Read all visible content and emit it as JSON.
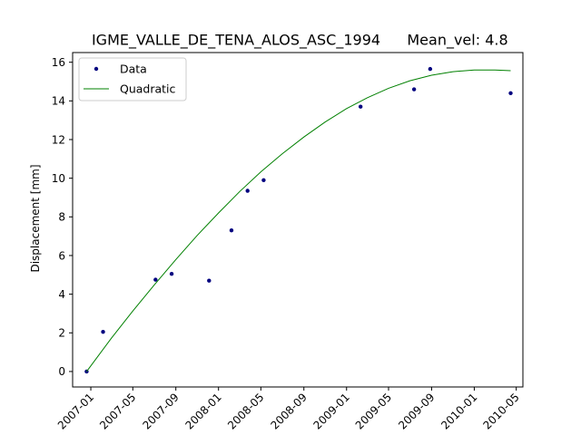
{
  "chart_data": {
    "type": "scatter",
    "title": "IGME_VALLE_DE_TENA_ALOS_ASC_1994",
    "subtitle": "Mean_vel: 4.8",
    "xlabel": "",
    "ylabel": "Displacement [mm]",
    "xlim": [
      "2006-11-10",
      "2010-05-20"
    ],
    "ylim": [
      -0.8,
      16.5
    ],
    "yticks": [
      0,
      2,
      4,
      6,
      8,
      10,
      12,
      14,
      16
    ],
    "xticks": [
      "2007-01",
      "2007-05",
      "2007-09",
      "2008-01",
      "2008-05",
      "2008-09",
      "2009-01",
      "2009-05",
      "2009-09",
      "2010-01",
      "2010-05"
    ],
    "grid": false,
    "legend": {
      "position": "top-left",
      "entries": [
        "Data",
        "Quadratic"
      ]
    },
    "series": [
      {
        "name": "Data",
        "kind": "points",
        "color": "#00007f",
        "x": [
          "2006-12-20",
          "2007-02-05",
          "2007-07-05",
          "2007-08-20",
          "2007-12-05",
          "2008-02-07",
          "2008-03-24",
          "2008-05-09",
          "2009-02-10",
          "2009-07-13",
          "2009-08-28",
          "2010-04-15"
        ],
        "y": [
          0.0,
          2.05,
          4.75,
          5.05,
          4.7,
          7.3,
          9.35,
          9.9,
          13.7,
          14.6,
          15.65,
          14.4
        ]
      },
      {
        "name": "Quadratic",
        "kind": "line",
        "color": "#008000",
        "x": [
          "2006-12-20",
          "2007-03-01",
          "2007-05-01",
          "2007-07-01",
          "2007-09-01",
          "2007-11-01",
          "2008-01-01",
          "2008-03-01",
          "2008-05-01",
          "2008-07-01",
          "2008-09-01",
          "2008-11-01",
          "2009-01-01",
          "2009-03-01",
          "2009-05-01",
          "2009-07-01",
          "2009-09-01",
          "2009-11-01",
          "2010-01-01",
          "2010-03-01",
          "2010-04-15"
        ],
        "y": [
          0.0,
          1.73,
          3.13,
          4.47,
          5.79,
          7.04,
          8.2,
          9.3,
          10.33,
          11.26,
          12.13,
          12.91,
          13.6,
          14.16,
          14.65,
          15.04,
          15.33,
          15.51,
          15.6,
          15.6,
          15.56
        ]
      }
    ]
  }
}
